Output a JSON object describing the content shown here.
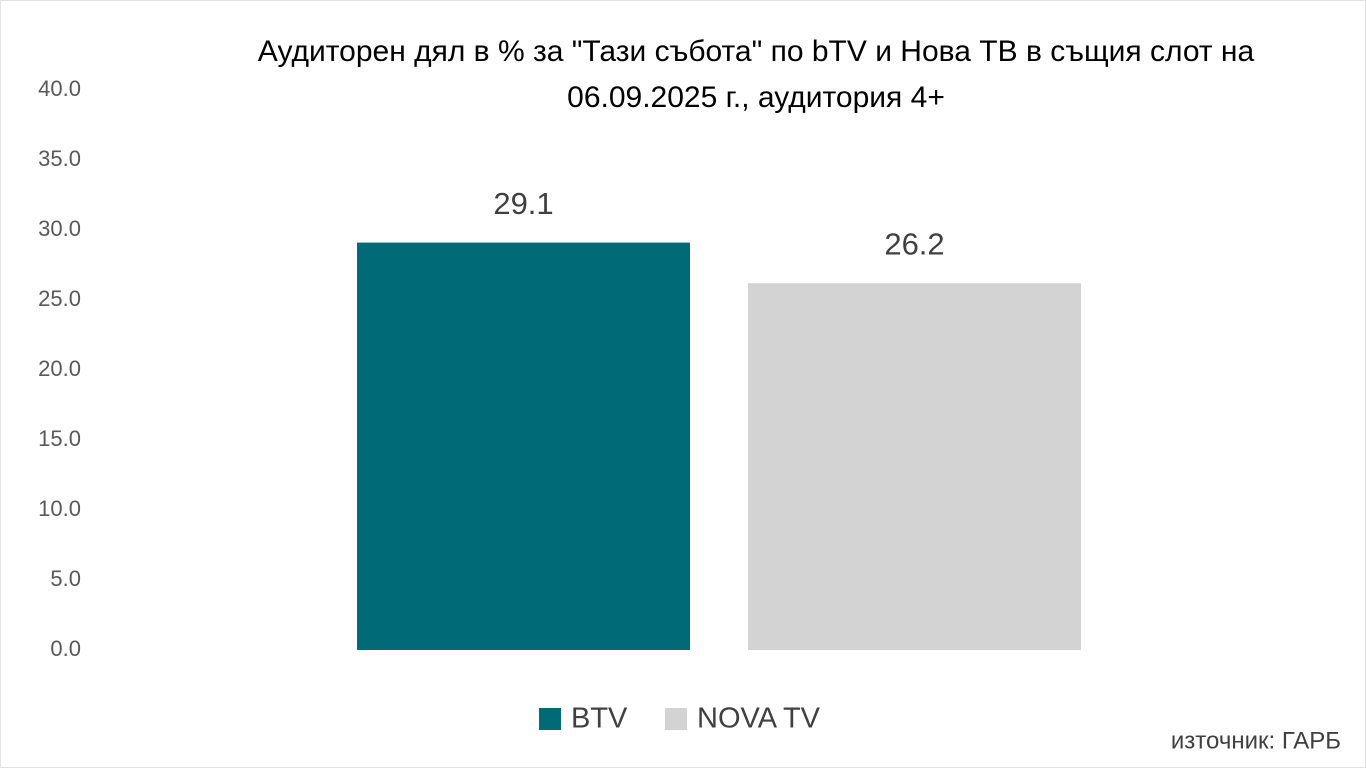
{
  "chart_data": {
    "type": "bar",
    "title": "Аудиторен дял в % за \"Тази събота\" по bTV и Нова ТВ в същия слот на 06.09.2025 г., аудитория 4+",
    "categories": [
      null
    ],
    "series": [
      {
        "name": "BTV",
        "color": "#006a77",
        "values": [
          29.1
        ]
      },
      {
        "name": "NOVA TV",
        "color": "#d3d3d3",
        "values": [
          26.2
        ]
      }
    ],
    "ylim": [
      0,
      40
    ],
    "yticks": [
      {
        "value": 0,
        "label": "0.0"
      },
      {
        "value": 5,
        "label": "5.0"
      },
      {
        "value": 10,
        "label": "10.0"
      },
      {
        "value": 15,
        "label": "15.0"
      },
      {
        "value": 20,
        "label": "20.0"
      },
      {
        "value": 25,
        "label": "25.0"
      },
      {
        "value": 30,
        "label": "30.0"
      },
      {
        "value": 35,
        "label": "35.0"
      },
      {
        "value": 40,
        "label": "40.0"
      }
    ],
    "grid": false,
    "legend": "bottom",
    "annotation": "източник: ГАРБ"
  }
}
